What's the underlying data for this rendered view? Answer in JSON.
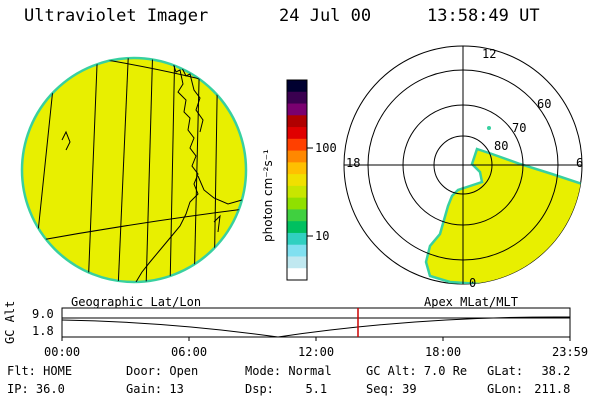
{
  "header": {
    "title": "Ultraviolet Imager",
    "date": "24 Jul 00",
    "time": "13:58:49 UT"
  },
  "colorbar": {
    "unit_label": "photon cm⁻²s⁻¹",
    "tick_100": "100",
    "tick_10": "10",
    "colors": [
      "#000030",
      "#3a0050",
      "#7a0070",
      "#b00000",
      "#e00000",
      "#ff4000",
      "#ff8800",
      "#ffc000",
      "#f0e000",
      "#c8e600",
      "#90e000",
      "#40d040",
      "#00c060",
      "#30d0c0",
      "#80e0f0",
      "#c0e8f0",
      "#ffffff"
    ]
  },
  "geo_panel": {
    "label": "Geographic Lat/Lon",
    "fill_color": "#e8ef00",
    "edge_color": "#38d0a0"
  },
  "polar_panel": {
    "label": "Apex MLat/MLT",
    "mlt_labels": {
      "top": "12",
      "left": "18",
      "right": "6",
      "bottom": "0"
    },
    "lat_labels": [
      "60",
      "70",
      "80"
    ],
    "fill_color": "#e8ef00",
    "edge_color": "#38d0a0"
  },
  "timeline": {
    "y_axis_label": "GC Alt",
    "y_max": "9.0",
    "y_min": "1.8",
    "x_ticks": [
      "00:00",
      "06:00",
      "12:00",
      "18:00",
      "23:59"
    ],
    "current_time_fraction": 0.5826,
    "marker_color": "#cc0000"
  },
  "status": {
    "flt_label": "Flt:",
    "flt_value": "HOME",
    "door_label": "Door:",
    "door_value": "Open",
    "mode_label": "Mode:",
    "mode_value": "Normal",
    "gcalt_label": "GC Alt:",
    "gcalt_value": "7.0 Re",
    "glat_label": "GLat:",
    "glat_value": "38.2",
    "ip_label": "IP:",
    "ip_value": "36.0",
    "gain_label": "Gain:",
    "gain_value": "13",
    "dsp_label": "Dsp:",
    "dsp_value": "5.1",
    "seq_label": "Seq:",
    "seq_value": "39",
    "glon_label": "GLon:",
    "glon_value": "211.8"
  }
}
